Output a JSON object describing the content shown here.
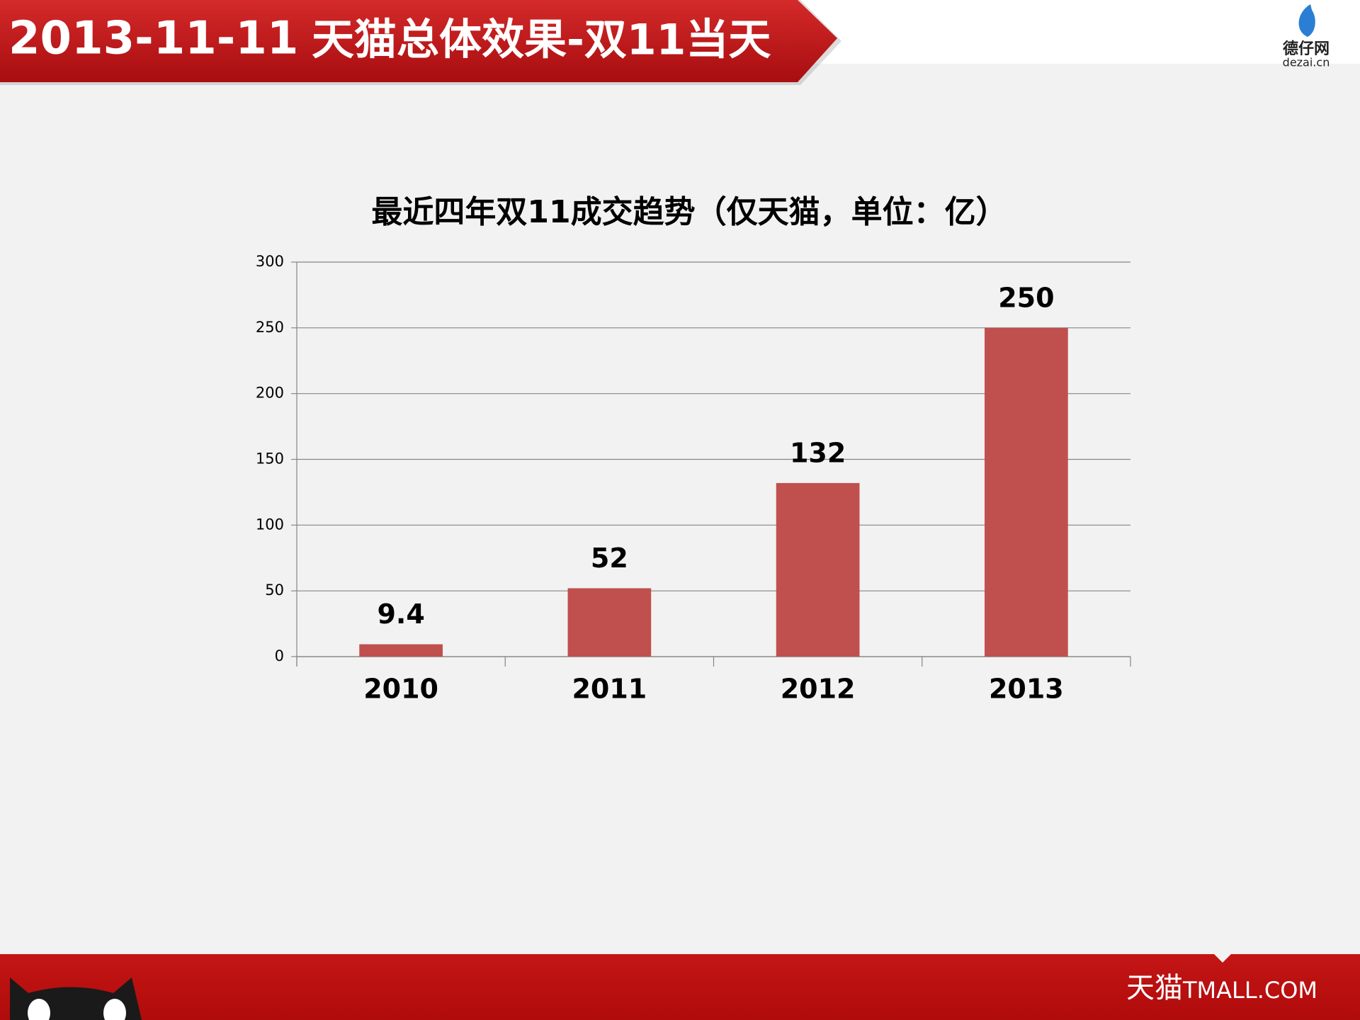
{
  "header": {
    "date": "2013-11-11",
    "title": "天猫总体效果-双11当天",
    "logo": "德仔网",
    "logo_sub": "dezai.cn"
  },
  "footer": {
    "brand": "天猫",
    "brand_en": "TMALL.COM"
  },
  "chart_data": {
    "type": "bar",
    "title": "最近四年双11成交趋势（仅天猫，单位：亿）",
    "categories": [
      "2010",
      "2011",
      "2012",
      "2013"
    ],
    "values": [
      9.4,
      52,
      132,
      250
    ],
    "color": "#c0504d",
    "ylim": [
      0,
      300
    ],
    "yticks": [
      0,
      50,
      100,
      150,
      200,
      250,
      300
    ],
    "grid": true
  }
}
